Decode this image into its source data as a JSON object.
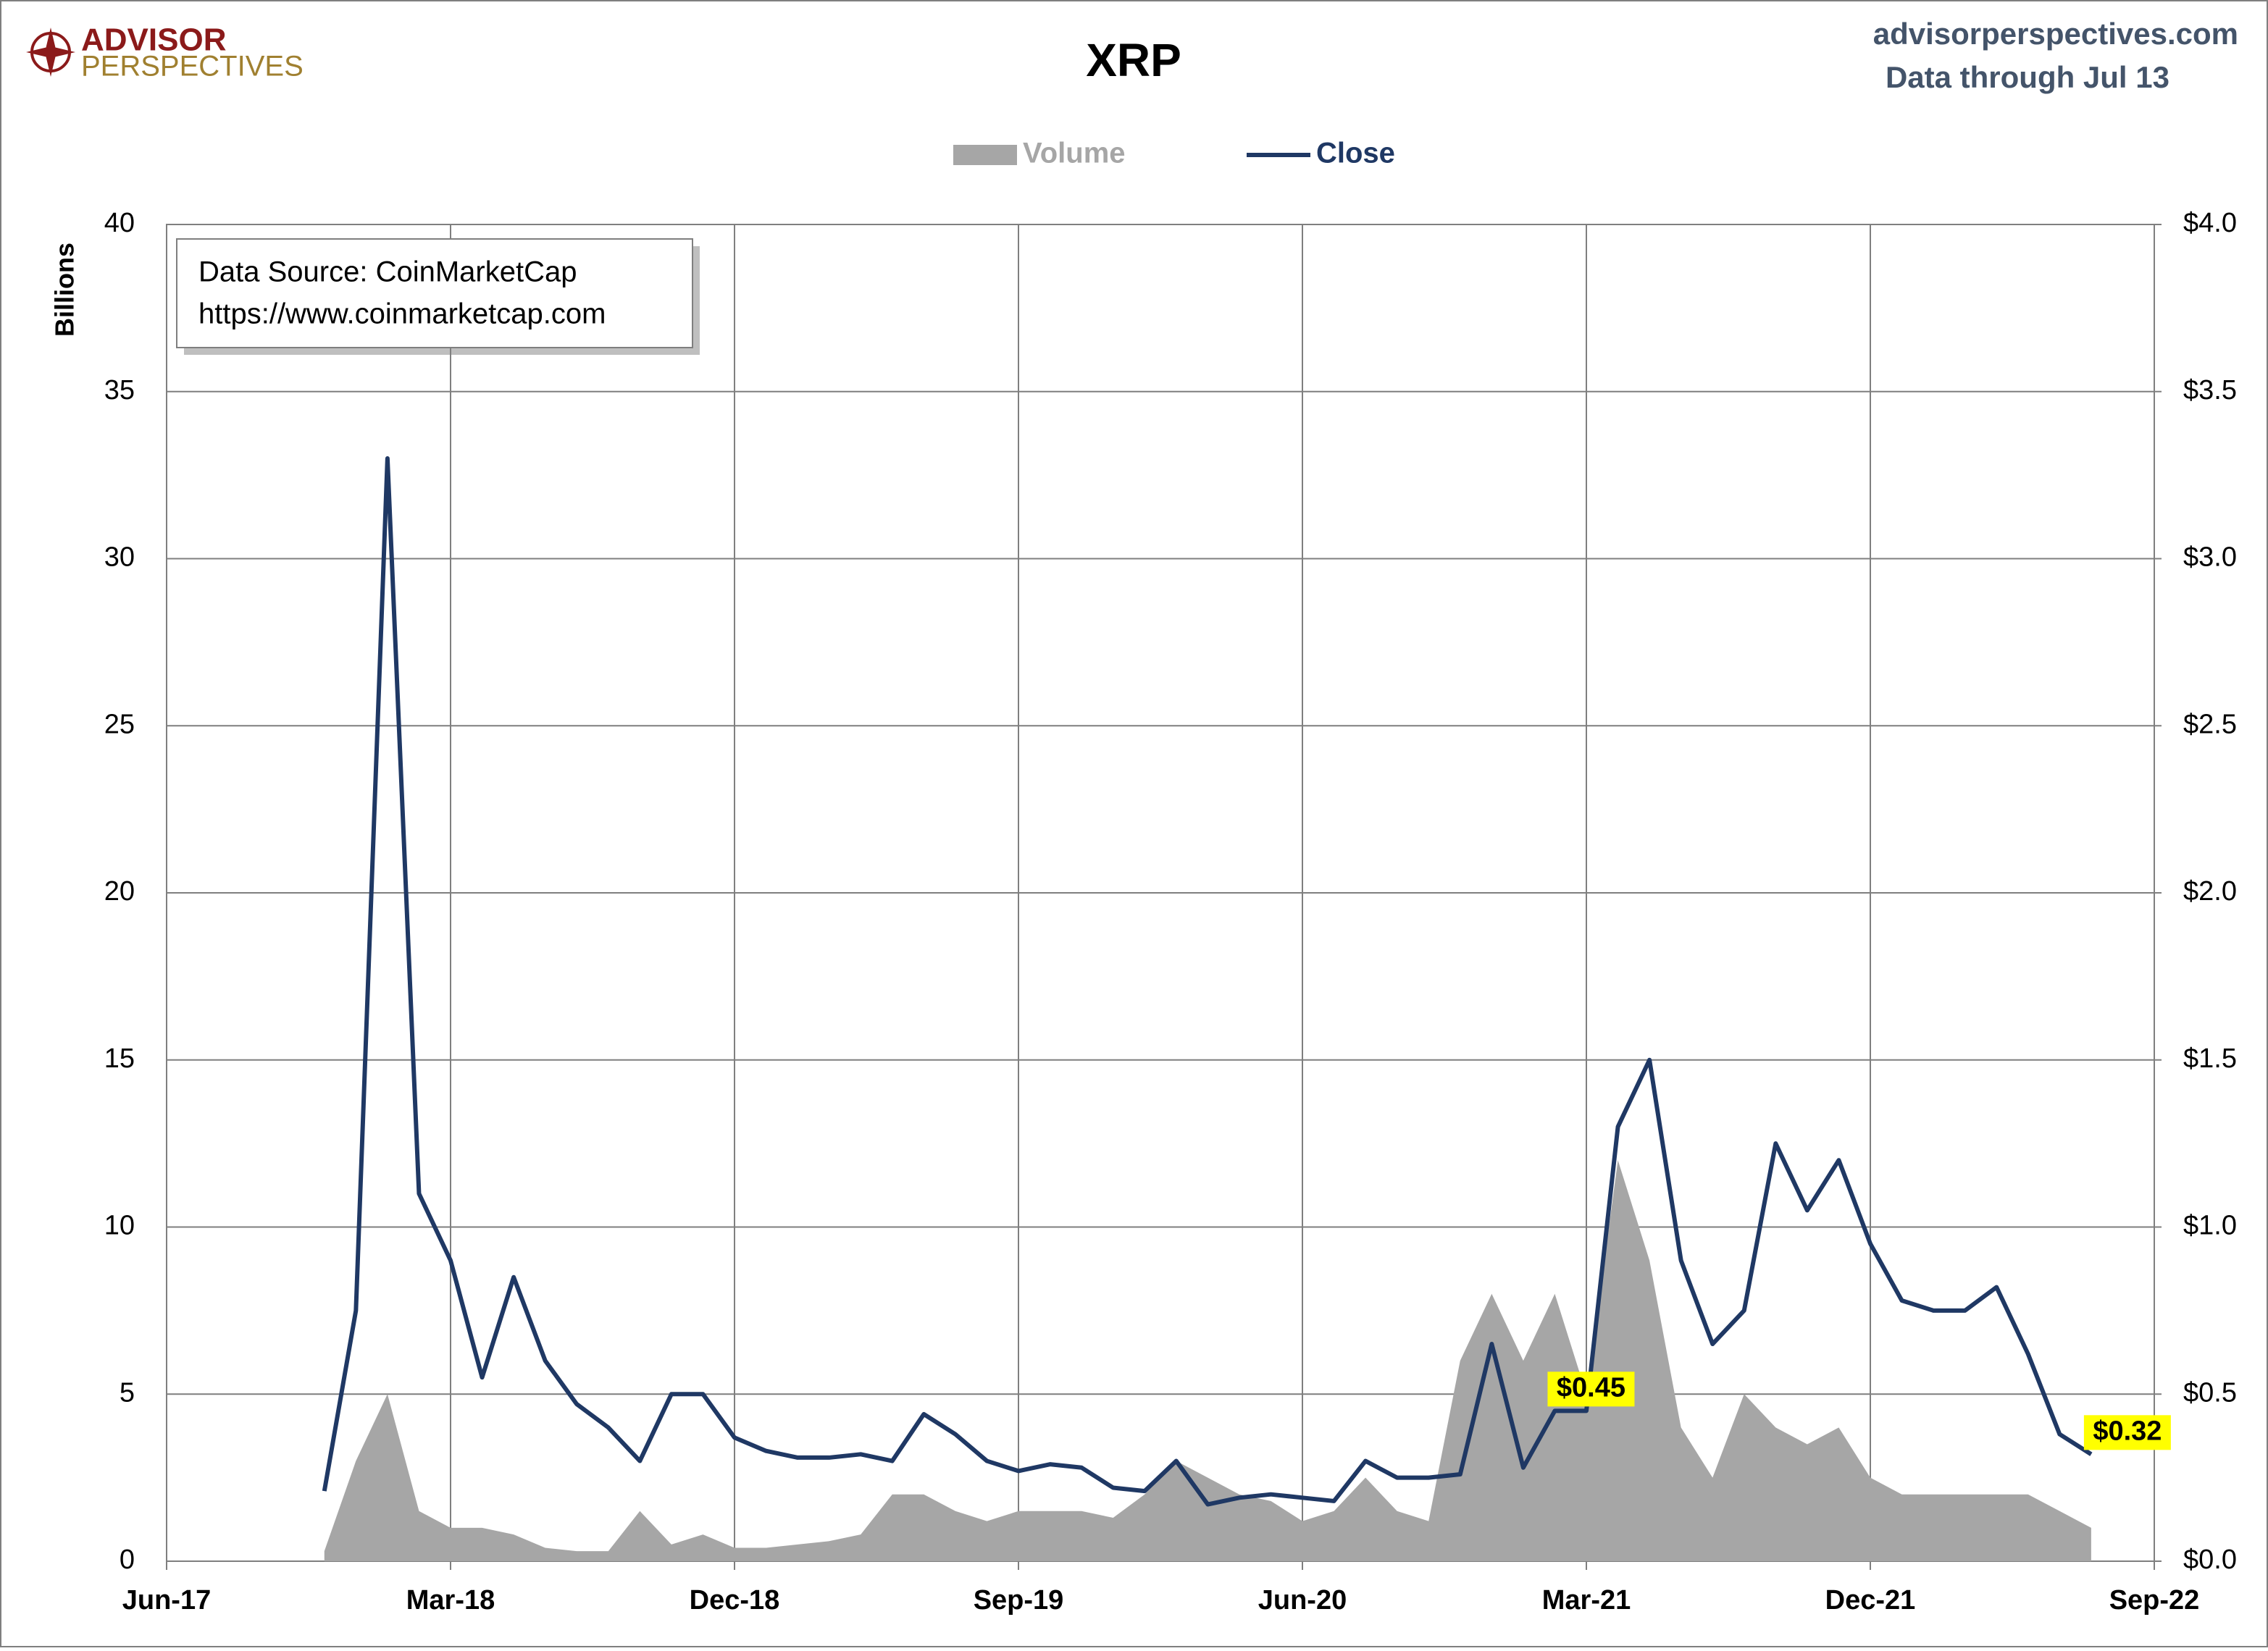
{
  "header": {
    "logo_top": "ADVISOR",
    "logo_bottom": "PERSPECTIVES",
    "site": "advisorperspectives.com",
    "note": "Data through Jul 13"
  },
  "chart_data": {
    "type": "combo",
    "title": "XRP",
    "y_label": "Billions",
    "annotations": [
      "Data Source: CoinMarketCap",
      "https://www.coinmarketcap.com"
    ],
    "legend": "top",
    "grid": true,
    "x": [
      "2017-11",
      "2017-12",
      "2018-01",
      "2018-02",
      "2018-03",
      "2018-04",
      "2018-05",
      "2018-06",
      "2018-07",
      "2018-08",
      "2018-09",
      "2018-10",
      "2018-11",
      "2018-12",
      "2019-01",
      "2019-02",
      "2019-03",
      "2019-04",
      "2019-05",
      "2019-06",
      "2019-07",
      "2019-08",
      "2019-09",
      "2019-10",
      "2019-11",
      "2019-12",
      "2020-01",
      "2020-02",
      "2020-03",
      "2020-04",
      "2020-05",
      "2020-06",
      "2020-07",
      "2020-08",
      "2020-09",
      "2020-10",
      "2020-11",
      "2020-12",
      "2021-01",
      "2021-02",
      "2021-03",
      "2021-04",
      "2021-05",
      "2021-06",
      "2021-07",
      "2021-08",
      "2021-09",
      "2021-10",
      "2021-11",
      "2021-12",
      "2022-01",
      "2022-02",
      "2022-03",
      "2022-04",
      "2022-05",
      "2022-06",
      "2022-07"
    ],
    "xlim": [
      "2017-06",
      "2022-09"
    ],
    "xticks": [
      {
        "value": "2017-06",
        "label": "Jun-17"
      },
      {
        "value": "2018-03",
        "label": "Mar-18"
      },
      {
        "value": "2018-12",
        "label": "Dec-18"
      },
      {
        "value": "2019-09",
        "label": "Sep-19"
      },
      {
        "value": "2020-06",
        "label": "Jun-20"
      },
      {
        "value": "2021-03",
        "label": "Mar-21"
      },
      {
        "value": "2021-12",
        "label": "Dec-21"
      },
      {
        "value": "2022-09",
        "label": "Sep-22"
      }
    ],
    "ylim": [
      0,
      40
    ],
    "yticks": [
      0,
      5,
      10,
      15,
      20,
      25,
      30,
      35,
      40
    ],
    "y2lim": [
      0,
      4
    ],
    "y2ticks": [
      {
        "value": 0,
        "label": "$0.0"
      },
      {
        "value": 0.5,
        "label": "$0.5"
      },
      {
        "value": 1,
        "label": "$1.0"
      },
      {
        "value": 1.5,
        "label": "$1.5"
      },
      {
        "value": 2,
        "label": "$2.0"
      },
      {
        "value": 2.5,
        "label": "$2.5"
      },
      {
        "value": 3,
        "label": "$3.0"
      },
      {
        "value": 3.5,
        "label": "$3.5"
      },
      {
        "value": 4,
        "label": "$4.0"
      }
    ],
    "series": [
      {
        "name": "Volume",
        "type": "area",
        "color": "#a6a6a6",
        "values": [
          0.3,
          3,
          5,
          1.5,
          1,
          1,
          0.8,
          0.4,
          0.3,
          0.3,
          1.5,
          0.5,
          0.8,
          0.4,
          0.4,
          0.5,
          0.6,
          0.8,
          2,
          2,
          1.5,
          1.2,
          1.5,
          1.5,
          1.5,
          1.3,
          2,
          3,
          2.5,
          2,
          1.8,
          1.2,
          1.5,
          2.5,
          1.5,
          1.2,
          6,
          8,
          6,
          8,
          5,
          12,
          9,
          4,
          2.5,
          5,
          4,
          3.5,
          4,
          2.5,
          2,
          2,
          2,
          2,
          2,
          1.5,
          1
        ]
      },
      {
        "name": "Close",
        "type": "line",
        "axis": "y2",
        "color": "#1f3864",
        "values": [
          0.21,
          0.75,
          3.3,
          1.1,
          0.9,
          0.55,
          0.85,
          0.6,
          0.47,
          0.4,
          0.3,
          0.5,
          0.5,
          0.37,
          0.33,
          0.31,
          0.31,
          0.32,
          0.3,
          0.44,
          0.38,
          0.3,
          0.27,
          0.29,
          0.28,
          0.22,
          0.21,
          0.3,
          0.17,
          0.19,
          0.2,
          0.19,
          0.18,
          0.3,
          0.25,
          0.25,
          0.26,
          0.65,
          0.28,
          0.45,
          0.45,
          1.3,
          1.5,
          0.9,
          0.65,
          0.75,
          1.25,
          1.05,
          1.2,
          0.95,
          0.78,
          0.75,
          0.75,
          0.82,
          0.62,
          0.38,
          0.32
        ],
        "value_labels": [
          null,
          null,
          null,
          null,
          null,
          null,
          null,
          null,
          null,
          null,
          null,
          null,
          null,
          null,
          null,
          null,
          null,
          null,
          null,
          null,
          null,
          null,
          null,
          null,
          null,
          null,
          null,
          null,
          null,
          null,
          null,
          null,
          null,
          null,
          null,
          null,
          null,
          null,
          null,
          "$0.45",
          null,
          null,
          null,
          null,
          null,
          null,
          null,
          null,
          null,
          null,
          null,
          null,
          null,
          null,
          null,
          null,
          "$0.32"
        ]
      }
    ]
  }
}
